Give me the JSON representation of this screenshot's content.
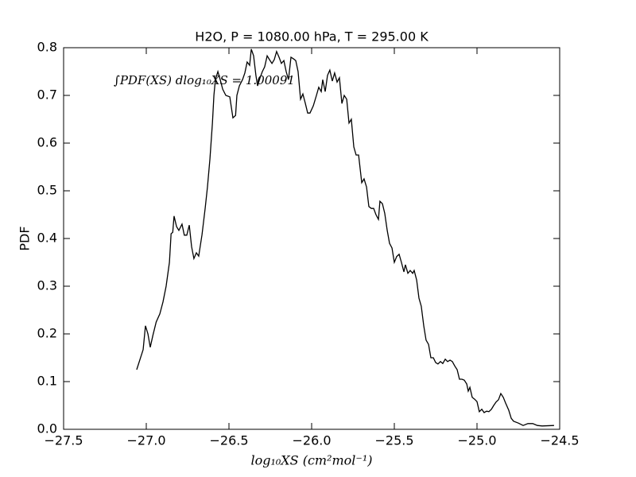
{
  "chart_data": {
    "type": "line",
    "title": "H2O, P = 1080.00 hPa, T = 295.00 K",
    "xlabel": "log₁₀XS (cm²mol⁻¹)",
    "ylabel": "PDF",
    "annotation": "∫PDF(XS) dlog₁₀XS = 1.00091",
    "color": "#000000",
    "xlim": [
      -27.5,
      -24.5
    ],
    "ylim": [
      0,
      0.8
    ],
    "xticks": [
      {
        "value": -27.5,
        "label": "−27.5"
      },
      {
        "value": -27.0,
        "label": "−27.0"
      },
      {
        "value": -26.5,
        "label": "−26.5"
      },
      {
        "value": -26.0,
        "label": "−26.0"
      },
      {
        "value": -25.5,
        "label": "−25.5"
      },
      {
        "value": -25.0,
        "label": "−25.0"
      },
      {
        "value": -24.5,
        "label": "−24.5"
      }
    ],
    "yticks": [
      {
        "value": 0,
        "label": "0.0"
      },
      0.1,
      0.2,
      0.3,
      0.4,
      0.5,
      0.6,
      0.7,
      0.8
    ],
    "x": [
      -27.058,
      -27.019,
      -27.005,
      -26.99,
      -26.976,
      -26.96,
      -26.94,
      -26.918,
      -26.899,
      -26.88,
      -26.86,
      -26.85,
      -26.84,
      -26.832,
      -26.817,
      -26.803,
      -26.784,
      -26.77,
      -26.755,
      -26.74,
      -26.726,
      -26.712,
      -26.697,
      -26.683,
      -26.663,
      -26.644,
      -26.63,
      -26.615,
      -26.6,
      -26.591,
      -26.582,
      -26.567,
      -26.553,
      -26.538,
      -26.519,
      -26.495,
      -26.476,
      -26.46,
      -26.452,
      -26.437,
      -26.418,
      -26.404,
      -26.39,
      -26.375,
      -26.365,
      -26.351,
      -26.337,
      -26.327,
      -26.312,
      -26.298,
      -26.284,
      -26.269,
      -26.255,
      -26.24,
      -26.226,
      -26.212,
      -26.197,
      -26.183,
      -26.168,
      -26.154,
      -26.14,
      -26.125,
      -26.111,
      -26.096,
      -26.082,
      -26.067,
      -26.053,
      -26.038,
      -26.024,
      -26.01,
      -25.99,
      -25.971,
      -25.957,
      -25.942,
      -25.933,
      -25.918,
      -25.904,
      -25.89,
      -25.875,
      -25.861,
      -25.846,
      -25.832,
      -25.817,
      -25.803,
      -25.788,
      -25.774,
      -25.76,
      -25.745,
      -25.731,
      -25.716,
      -25.697,
      -25.683,
      -25.668,
      -25.654,
      -25.639,
      -25.625,
      -25.611,
      -25.596,
      -25.587,
      -25.572,
      -25.558,
      -25.543,
      -25.529,
      -25.514,
      -25.5,
      -25.486,
      -25.471,
      -25.457,
      -25.442,
      -25.433,
      -25.418,
      -25.404,
      -25.389,
      -25.38,
      -25.365,
      -25.351,
      -25.337,
      -25.322,
      -25.308,
      -25.293,
      -25.279,
      -25.264,
      -25.25,
      -25.236,
      -25.221,
      -25.207,
      -25.192,
      -25.178,
      -25.163,
      -25.149,
      -25.135,
      -25.12,
      -25.106,
      -25.091,
      -25.077,
      -25.062,
      -25.053,
      -25.043,
      -25.029,
      -25.014,
      -25.0,
      -24.986,
      -24.971,
      -24.957,
      -24.942,
      -24.928,
      -24.913,
      -24.899,
      -24.885,
      -24.87,
      -24.856,
      -24.841,
      -24.827,
      -24.808,
      -24.793,
      -24.779,
      -24.75,
      -24.721,
      -24.692,
      -24.663,
      -24.635,
      -24.606,
      -24.534
    ],
    "values": [
      0.125,
      0.167,
      0.217,
      0.2,
      0.172,
      0.197,
      0.225,
      0.242,
      0.267,
      0.3,
      0.35,
      0.41,
      0.413,
      0.447,
      0.425,
      0.417,
      0.43,
      0.407,
      0.407,
      0.428,
      0.383,
      0.358,
      0.37,
      0.363,
      0.408,
      0.463,
      0.508,
      0.567,
      0.642,
      0.7,
      0.733,
      0.75,
      0.733,
      0.713,
      0.7,
      0.697,
      0.653,
      0.658,
      0.7,
      0.72,
      0.733,
      0.747,
      0.77,
      0.763,
      0.797,
      0.783,
      0.742,
      0.72,
      0.737,
      0.75,
      0.76,
      0.783,
      0.775,
      0.767,
      0.775,
      0.792,
      0.78,
      0.767,
      0.773,
      0.75,
      0.733,
      0.78,
      0.777,
      0.773,
      0.75,
      0.692,
      0.703,
      0.683,
      0.663,
      0.663,
      0.678,
      0.7,
      0.717,
      0.708,
      0.733,
      0.708,
      0.742,
      0.753,
      0.73,
      0.747,
      0.728,
      0.737,
      0.683,
      0.7,
      0.692,
      0.642,
      0.65,
      0.592,
      0.575,
      0.575,
      0.517,
      0.525,
      0.508,
      0.467,
      0.463,
      0.463,
      0.45,
      0.44,
      0.478,
      0.473,
      0.453,
      0.417,
      0.39,
      0.38,
      0.35,
      0.362,
      0.367,
      0.35,
      0.33,
      0.345,
      0.327,
      0.333,
      0.327,
      0.333,
      0.313,
      0.275,
      0.258,
      0.217,
      0.187,
      0.178,
      0.15,
      0.15,
      0.14,
      0.137,
      0.142,
      0.138,
      0.147,
      0.142,
      0.145,
      0.142,
      0.133,
      0.125,
      0.105,
      0.105,
      0.103,
      0.095,
      0.08,
      0.088,
      0.067,
      0.063,
      0.058,
      0.037,
      0.042,
      0.035,
      0.038,
      0.037,
      0.042,
      0.05,
      0.057,
      0.062,
      0.075,
      0.067,
      0.055,
      0.04,
      0.023,
      0.017,
      0.013,
      0.008,
      0.012,
      0.012,
      0.008,
      0.007,
      0.008
    ]
  }
}
